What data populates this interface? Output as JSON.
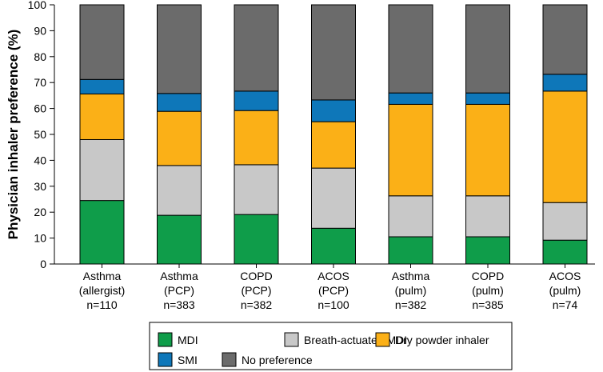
{
  "chart_data": {
    "type": "bar",
    "stacked": true,
    "title": "",
    "xlabel": "",
    "ylabel": "Physician inhaler preference (%)",
    "ylim": [
      0,
      100
    ],
    "yticks": [
      0,
      10,
      20,
      30,
      40,
      50,
      60,
      70,
      80,
      90,
      100
    ],
    "grid": false,
    "legend_position": "bottom",
    "categories": [
      {
        "line1": "Asthma",
        "line2": "(allergist)",
        "line3": "n=110"
      },
      {
        "line1": "Asthma",
        "line2": "(PCP)",
        "line3": "n=383"
      },
      {
        "line1": "COPD",
        "line2": "(PCP)",
        "line3": "n=382"
      },
      {
        "line1": "ACOS",
        "line2": "(PCP)",
        "line3": "n=100"
      },
      {
        "line1": "Asthma",
        "line2": "(pulm)",
        "line3": "n=382"
      },
      {
        "line1": "COPD",
        "line2": "(pulm)",
        "line3": "n=385"
      },
      {
        "line1": "ACOS",
        "line2": "(pulm)",
        "line3": "n=74"
      }
    ],
    "series": [
      {
        "name": "MDI",
        "color": "#0f9d4a",
        "values": [
          24.5,
          18.8,
          19.1,
          13.8,
          10.5,
          10.5,
          9.2
        ]
      },
      {
        "name": "Breath-actuated MDI",
        "color": "#c8c8c8",
        "values": [
          23.5,
          19.2,
          19.2,
          23.2,
          15.8,
          15.8,
          14.5
        ]
      },
      {
        "name": "Dry powder inhaler",
        "color": "#fbb017",
        "values": [
          17.6,
          20.9,
          20.9,
          17.9,
          35.3,
          35.3,
          43.0
        ]
      },
      {
        "name": "SMI",
        "color": "#0e77b9",
        "values": [
          5.6,
          6.9,
          7.5,
          8.4,
          4.4,
          4.4,
          6.5
        ]
      },
      {
        "name": "No preference",
        "color": "#6b6b6b",
        "values": [
          28.8,
          34.2,
          33.3,
          36.7,
          34.0,
          34.0,
          26.8
        ]
      }
    ]
  }
}
